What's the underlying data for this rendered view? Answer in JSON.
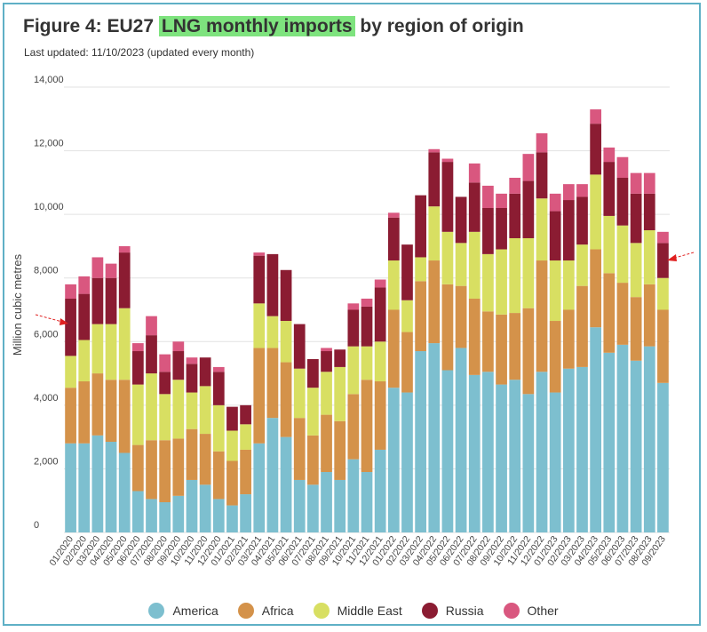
{
  "figure": {
    "title_prefix": "Figure 4: EU27 ",
    "title_highlight": "LNG monthly imports",
    "title_suffix": " by region of origin",
    "subtitle": "Last updated: 11/10/2023 (updated every month)"
  },
  "chart_data": {
    "type": "bar",
    "stacked": true,
    "title": "Figure 4: EU27 LNG monthly imports by region of origin",
    "xlabel": "",
    "ylabel": "Million cubic metres",
    "ylim": [
      0,
      14000
    ],
    "yticks": [
      0,
      2000,
      4000,
      6000,
      8000,
      10000,
      12000,
      14000
    ],
    "ytick_labels": [
      "0",
      "2,000",
      "4,000",
      "6,000",
      "8,000",
      "10,000",
      "12,000",
      "14,000"
    ],
    "grid": true,
    "legend_position": "bottom",
    "categories": [
      "01/2020",
      "02/2020",
      "03/2020",
      "04/2020",
      "05/2020",
      "06/2020",
      "07/2020",
      "08/2020",
      "09/2020",
      "10/2020",
      "11/2020",
      "12/2020",
      "01/2021",
      "02/2021",
      "03/2021",
      "04/2021",
      "05/2021",
      "06/2021",
      "07/2021",
      "08/2021",
      "09/2021",
      "10/2021",
      "11/2021",
      "12/2021",
      "01/2022",
      "02/2022",
      "03/2022",
      "04/2022",
      "05/2022",
      "06/2022",
      "07/2022",
      "08/2022",
      "09/2022",
      "10/2022",
      "11/2022",
      "12/2022",
      "01/2023",
      "02/2023",
      "03/2023",
      "04/2023",
      "05/2023",
      "06/2023",
      "07/2023",
      "08/2023",
      "09/2023"
    ],
    "series": [
      {
        "name": "America",
        "color": "#7dbfcf",
        "values": [
          2800,
          2800,
          3050,
          2850,
          2500,
          1300,
          1050,
          950,
          1150,
          1650,
          1500,
          1050,
          850,
          1200,
          2800,
          3600,
          3000,
          1650,
          1500,
          1900,
          1650,
          2300,
          1900,
          2600,
          4550,
          4400,
          5700,
          5950,
          5100,
          5800,
          4950,
          5050,
          4650,
          4800,
          4350,
          5050,
          4400,
          5150,
          5200,
          6450,
          5650,
          5900,
          5400,
          5850,
          4700
        ]
      },
      {
        "name": "Africa",
        "color": "#d4924a",
        "values": [
          1750,
          1950,
          1950,
          1950,
          2300,
          1450,
          1850,
          1950,
          1800,
          1600,
          1600,
          1500,
          1400,
          1400,
          3000,
          2200,
          2350,
          1950,
          1550,
          1800,
          1850,
          2050,
          2900,
          2150,
          2450,
          1900,
          2200,
          2600,
          2700,
          1950,
          2400,
          1900,
          2200,
          2100,
          2700,
          3500,
          2250,
          1850,
          2550,
          2450,
          2500,
          1950,
          2000,
          1950,
          2300
        ]
      },
      {
        "name": "Middle East",
        "color": "#d8df62",
        "values": [
          1000,
          1300,
          1550,
          1750,
          2250,
          1900,
          2100,
          1450,
          1850,
          1150,
          1500,
          1450,
          950,
          800,
          1400,
          1000,
          1300,
          1550,
          1500,
          1350,
          1700,
          1500,
          1050,
          1250,
          1550,
          1000,
          750,
          1700,
          1650,
          1350,
          2100,
          1800,
          2050,
          2350,
          2200,
          1950,
          1900,
          1550,
          1300,
          2350,
          1800,
          1800,
          1700,
          1700,
          1000
        ]
      },
      {
        "name": "Russia",
        "color": "#8b1c32",
        "values": [
          1800,
          1450,
          1450,
          1450,
          1750,
          1050,
          1200,
          700,
          900,
          900,
          900,
          1050,
          750,
          600,
          1500,
          1950,
          1600,
          1400,
          900,
          650,
          550,
          1150,
          1250,
          1700,
          1350,
          1750,
          1950,
          1700,
          2200,
          1450,
          1550,
          1450,
          1300,
          1400,
          1800,
          1450,
          1550,
          1900,
          1500,
          1600,
          1700,
          1500,
          1550,
          1150,
          1100
        ]
      },
      {
        "name": "Other",
        "color": "#d9577f",
        "values": [
          450,
          550,
          650,
          450,
          200,
          250,
          600,
          550,
          300,
          200,
          0,
          150,
          0,
          0,
          100,
          0,
          0,
          0,
          0,
          100,
          0,
          200,
          250,
          250,
          150,
          0,
          0,
          100,
          100,
          0,
          600,
          700,
          450,
          500,
          850,
          600,
          550,
          500,
          400,
          450,
          450,
          650,
          650,
          650,
          350
        ]
      }
    ]
  }
}
